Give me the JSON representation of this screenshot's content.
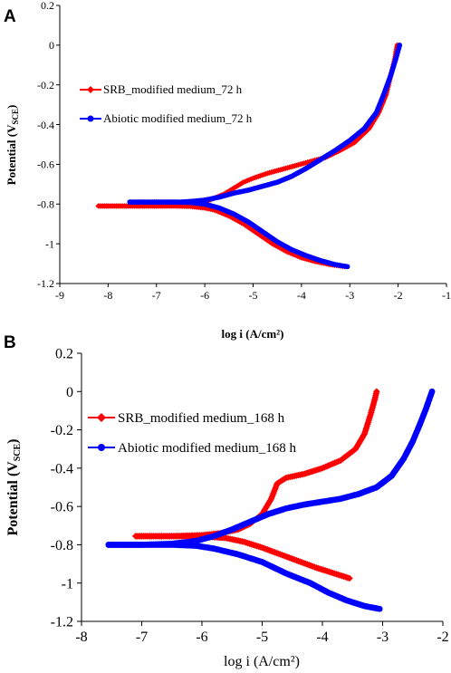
{
  "chart_data": [
    {
      "type": "line",
      "panel_label": "A",
      "xlabel": "log i (A/cm²)",
      "ylabel": "Potential (V",
      "ylabel_sub": "SCE",
      "ylabel_close": ")",
      "xlim": [
        -9,
        -1
      ],
      "ylim": [
        -1.2,
        0.2
      ],
      "x_ticks": [
        "-9",
        "-8",
        "-7",
        "-6",
        "-5",
        "-4",
        "-3",
        "-2",
        "-1"
      ],
      "y_ticks": [
        "0.2",
        "0",
        "-0.2",
        "-0.4",
        "-0.6",
        "-0.8",
        "-1",
        "-1.2"
      ],
      "grid": false,
      "legend_placement": "upper-left",
      "series": [
        {
          "name": "SRB_modified medium_72 h",
          "color": "#ff0000",
          "marker": "diamond",
          "cathodic": [
            [
              -8.2,
              -0.81
            ],
            [
              -7.5,
              -0.81
            ],
            [
              -7.0,
              -0.81
            ],
            [
              -6.6,
              -0.81
            ],
            [
              -6.3,
              -0.812
            ],
            [
              -6.0,
              -0.82
            ],
            [
              -5.8,
              -0.83
            ],
            [
              -5.5,
              -0.86
            ],
            [
              -5.2,
              -0.9
            ],
            [
              -4.9,
              -0.95
            ],
            [
              -4.6,
              -1.0
            ],
            [
              -4.3,
              -1.04
            ],
            [
              -4.0,
              -1.07
            ],
            [
              -3.7,
              -1.09
            ],
            [
              -3.4,
              -1.105
            ],
            [
              -3.1,
              -1.115
            ]
          ],
          "anodic": [
            [
              -8.2,
              -0.81
            ],
            [
              -7.0,
              -0.81
            ],
            [
              -6.5,
              -0.805
            ],
            [
              -6.2,
              -0.8
            ],
            [
              -6.0,
              -0.79
            ],
            [
              -5.8,
              -0.77
            ],
            [
              -5.6,
              -0.75
            ],
            [
              -5.4,
              -0.72
            ],
            [
              -5.2,
              -0.69
            ],
            [
              -5.0,
              -0.67
            ],
            [
              -4.7,
              -0.645
            ],
            [
              -4.4,
              -0.625
            ],
            [
              -4.1,
              -0.605
            ],
            [
              -3.8,
              -0.585
            ],
            [
              -3.5,
              -0.565
            ],
            [
              -3.2,
              -0.53
            ],
            [
              -2.9,
              -0.49
            ],
            [
              -2.6,
              -0.42
            ],
            [
              -2.4,
              -0.34
            ],
            [
              -2.25,
              -0.25
            ],
            [
              -2.15,
              -0.15
            ],
            [
              -2.07,
              -0.07
            ],
            [
              -2.02,
              0.0
            ]
          ]
        },
        {
          "name": "Abiotic modified medium_72 h",
          "color": "#0000ff",
          "marker": "circle",
          "cathodic": [
            [
              -7.55,
              -0.79
            ],
            [
              -7.0,
              -0.79
            ],
            [
              -6.6,
              -0.79
            ],
            [
              -6.3,
              -0.792
            ],
            [
              -6.0,
              -0.8
            ],
            [
              -5.7,
              -0.82
            ],
            [
              -5.4,
              -0.85
            ],
            [
              -5.1,
              -0.89
            ],
            [
              -4.8,
              -0.94
            ],
            [
              -4.5,
              -0.99
            ],
            [
              -4.2,
              -1.03
            ],
            [
              -3.9,
              -1.06
            ],
            [
              -3.6,
              -1.085
            ],
            [
              -3.3,
              -1.105
            ],
            [
              -3.05,
              -1.115
            ]
          ],
          "anodic": [
            [
              -7.55,
              -0.79
            ],
            [
              -7.0,
              -0.79
            ],
            [
              -6.5,
              -0.79
            ],
            [
              -6.2,
              -0.785
            ],
            [
              -6.0,
              -0.78
            ],
            [
              -5.7,
              -0.765
            ],
            [
              -5.4,
              -0.745
            ],
            [
              -5.1,
              -0.73
            ],
            [
              -4.8,
              -0.71
            ],
            [
              -4.5,
              -0.69
            ],
            [
              -4.2,
              -0.66
            ],
            [
              -3.9,
              -0.62
            ],
            [
              -3.6,
              -0.575
            ],
            [
              -3.3,
              -0.53
            ],
            [
              -3.0,
              -0.48
            ],
            [
              -2.7,
              -0.42
            ],
            [
              -2.45,
              -0.34
            ],
            [
              -2.3,
              -0.25
            ],
            [
              -2.15,
              -0.15
            ],
            [
              -2.05,
              -0.07
            ],
            [
              -1.97,
              0.0
            ]
          ]
        }
      ]
    },
    {
      "type": "line",
      "panel_label": "B",
      "xlabel": "log i (A/cm²)",
      "ylabel": "Potential (V",
      "ylabel_sub": "SCE",
      "ylabel_close": ")",
      "xlim": [
        -8,
        -2
      ],
      "ylim": [
        -1.2,
        0.2
      ],
      "x_ticks": [
        "-8",
        "-7",
        "-6",
        "-5",
        "-4",
        "-3",
        "-2"
      ],
      "y_ticks": [
        "0.2",
        "0",
        "-0.2",
        "-0.4",
        "-0.6",
        "-0.8",
        "-1",
        "-1.2"
      ],
      "grid": false,
      "legend_placement": "upper-left",
      "series": [
        {
          "name": "SRB_modified medium_168 h",
          "color": "#ff0000",
          "marker": "diamond",
          "cathodic": [
            [
              -7.1,
              -0.755
            ],
            [
              -6.6,
              -0.755
            ],
            [
              -6.2,
              -0.755
            ],
            [
              -5.9,
              -0.758
            ],
            [
              -5.6,
              -0.765
            ],
            [
              -5.3,
              -0.785
            ],
            [
              -5.0,
              -0.815
            ],
            [
              -4.7,
              -0.85
            ],
            [
              -4.4,
              -0.885
            ],
            [
              -4.1,
              -0.92
            ],
            [
              -3.8,
              -0.95
            ],
            [
              -3.55,
              -0.975
            ]
          ],
          "anodic": [
            [
              -7.1,
              -0.755
            ],
            [
              -6.5,
              -0.755
            ],
            [
              -6.0,
              -0.75
            ],
            [
              -5.7,
              -0.74
            ],
            [
              -5.4,
              -0.72
            ],
            [
              -5.2,
              -0.69
            ],
            [
              -5.0,
              -0.64
            ],
            [
              -4.85,
              -0.56
            ],
            [
              -4.75,
              -0.48
            ],
            [
              -4.6,
              -0.45
            ],
            [
              -4.3,
              -0.43
            ],
            [
              -4.0,
              -0.4
            ],
            [
              -3.7,
              -0.36
            ],
            [
              -3.45,
              -0.3
            ],
            [
              -3.3,
              -0.22
            ],
            [
              -3.2,
              -0.12
            ],
            [
              -3.13,
              -0.04
            ],
            [
              -3.1,
              0.0
            ]
          ]
        },
        {
          "name": "Abiotic modified medium_168 h",
          "color": "#0000ff",
          "marker": "circle",
          "cathodic": [
            [
              -7.55,
              -0.8
            ],
            [
              -7.0,
              -0.8
            ],
            [
              -6.5,
              -0.8
            ],
            [
              -6.1,
              -0.805
            ],
            [
              -5.8,
              -0.82
            ],
            [
              -5.4,
              -0.85
            ],
            [
              -5.0,
              -0.89
            ],
            [
              -4.6,
              -0.95
            ],
            [
              -4.2,
              -1.0
            ],
            [
              -3.9,
              -1.05
            ],
            [
              -3.6,
              -1.09
            ],
            [
              -3.3,
              -1.12
            ],
            [
              -3.05,
              -1.135
            ]
          ],
          "anodic": [
            [
              -7.55,
              -0.8
            ],
            [
              -7.0,
              -0.8
            ],
            [
              -6.5,
              -0.795
            ],
            [
              -6.1,
              -0.78
            ],
            [
              -5.8,
              -0.755
            ],
            [
              -5.5,
              -0.72
            ],
            [
              -5.2,
              -0.68
            ],
            [
              -4.9,
              -0.64
            ],
            [
              -4.6,
              -0.61
            ],
            [
              -4.3,
              -0.59
            ],
            [
              -4.0,
              -0.575
            ],
            [
              -3.7,
              -0.56
            ],
            [
              -3.4,
              -0.535
            ],
            [
              -3.1,
              -0.5
            ],
            [
              -2.85,
              -0.44
            ],
            [
              -2.65,
              -0.35
            ],
            [
              -2.5,
              -0.26
            ],
            [
              -2.38,
              -0.17
            ],
            [
              -2.28,
              -0.09
            ],
            [
              -2.18,
              0.0
            ]
          ]
        }
      ]
    }
  ]
}
